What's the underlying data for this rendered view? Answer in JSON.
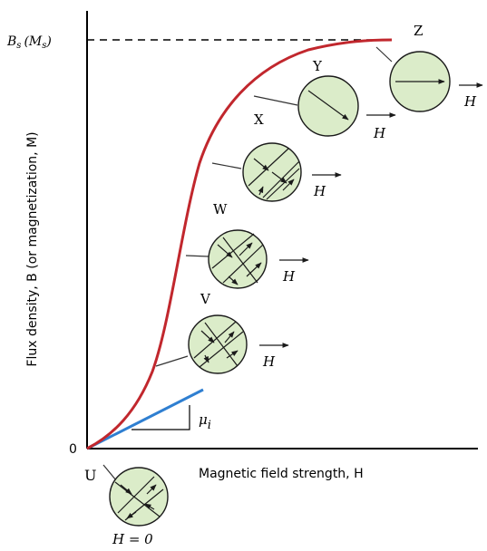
{
  "figure": {
    "bs_label": "B",
    "bs_sub": "s",
    "bs_paren": "(M",
    "bs_paren_sub": "s",
    "bs_paren_close": ")",
    "y_axis_label": "Flux density, B (or magnetization, M)",
    "x_axis_label": "Magnetic field strength, H",
    "origin_label": "0",
    "mu_label": "μ",
    "mu_sub": "i",
    "h_zero_label": "H = 0",
    "h_label": "H",
    "colors": {
      "curve": "#c1272d",
      "initial_slope": "#2f7fd1",
      "domain_fill": "#dbecc9",
      "axis": "#000000"
    },
    "points": [
      {
        "id": "U",
        "label": "U"
      },
      {
        "id": "V",
        "label": "V"
      },
      {
        "id": "W",
        "label": "W"
      },
      {
        "id": "X",
        "label": "X"
      },
      {
        "id": "Y",
        "label": "Y"
      },
      {
        "id": "Z",
        "label": "Z"
      }
    ]
  }
}
